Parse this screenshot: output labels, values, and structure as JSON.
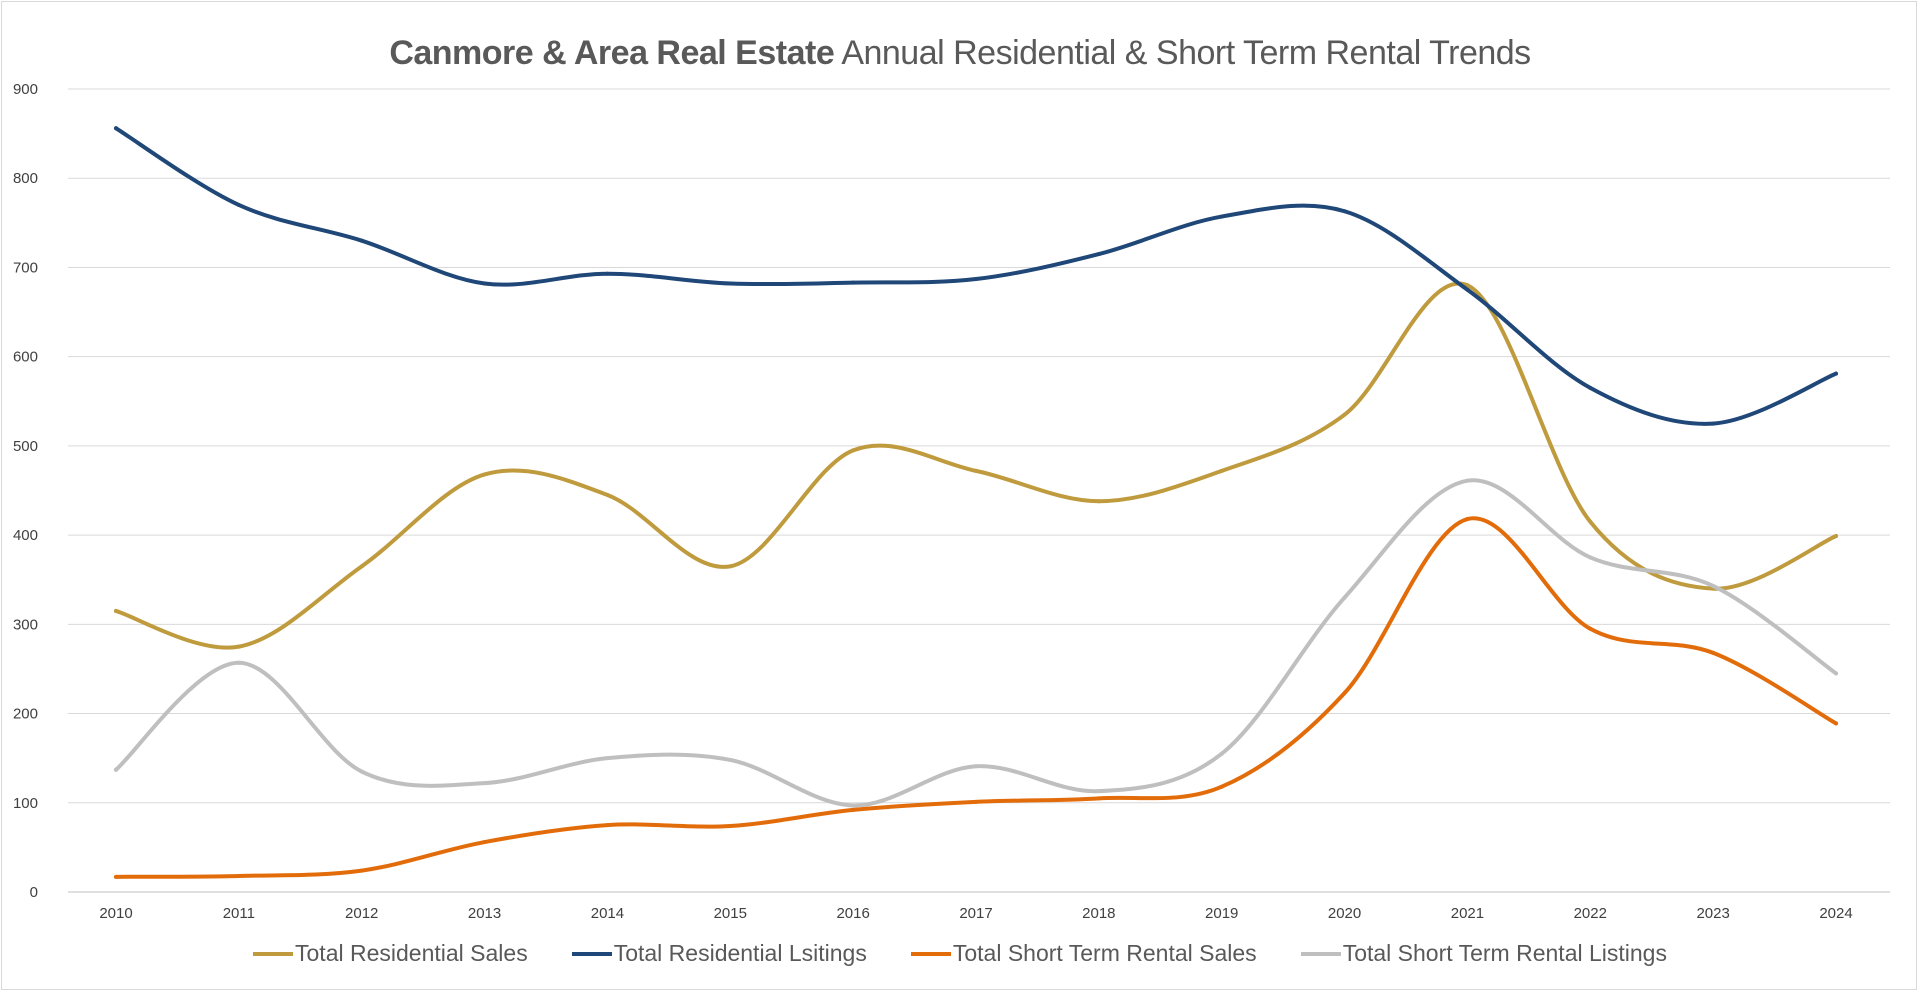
{
  "chart_data": {
    "type": "line",
    "title_bold": "Canmore & Area Real Estate",
    "title_rest": "Annual Residential & Short Term Rental Trends",
    "xlabel": "",
    "ylabel": "",
    "ylim": [
      0,
      900
    ],
    "yticks": [
      "0",
      "100",
      "200",
      "300",
      "400",
      "500",
      "600",
      "700",
      "800",
      "900"
    ],
    "categories": [
      "2010",
      "2011",
      "2012",
      "2013",
      "2014",
      "2015",
      "2016",
      "2017",
      "2018",
      "2019",
      "2020",
      "2021",
      "2022",
      "2023",
      "2024"
    ],
    "grid": true,
    "legend_position": "bottom",
    "smooth": true,
    "series": [
      {
        "name": "Total Residential Sales",
        "color": "#bf9b3e",
        "values": [
          315,
          275,
          365,
          468,
          445,
          365,
          495,
          472,
          438,
          472,
          535,
          680,
          415,
          340,
          399
        ]
      },
      {
        "name": "Total Residential Lsitings",
        "color": "#1f4778",
        "values": [
          856,
          770,
          730,
          682,
          693,
          682,
          683,
          687,
          715,
          757,
          763,
          675,
          565,
          525,
          581
        ]
      },
      {
        "name": "Total Short Term Rental Sales",
        "color": "#e36c0a",
        "values": [
          17,
          18,
          24,
          56,
          75,
          74,
          92,
          101,
          105,
          118,
          223,
          418,
          295,
          268,
          189
        ]
      },
      {
        "name": "Total Short Term Rental Listings",
        "color": "#bfbfbf",
        "values": [
          137,
          257,
          135,
          122,
          150,
          148,
          97,
          141,
          113,
          155,
          330,
          461,
          375,
          343,
          245
        ]
      }
    ]
  }
}
